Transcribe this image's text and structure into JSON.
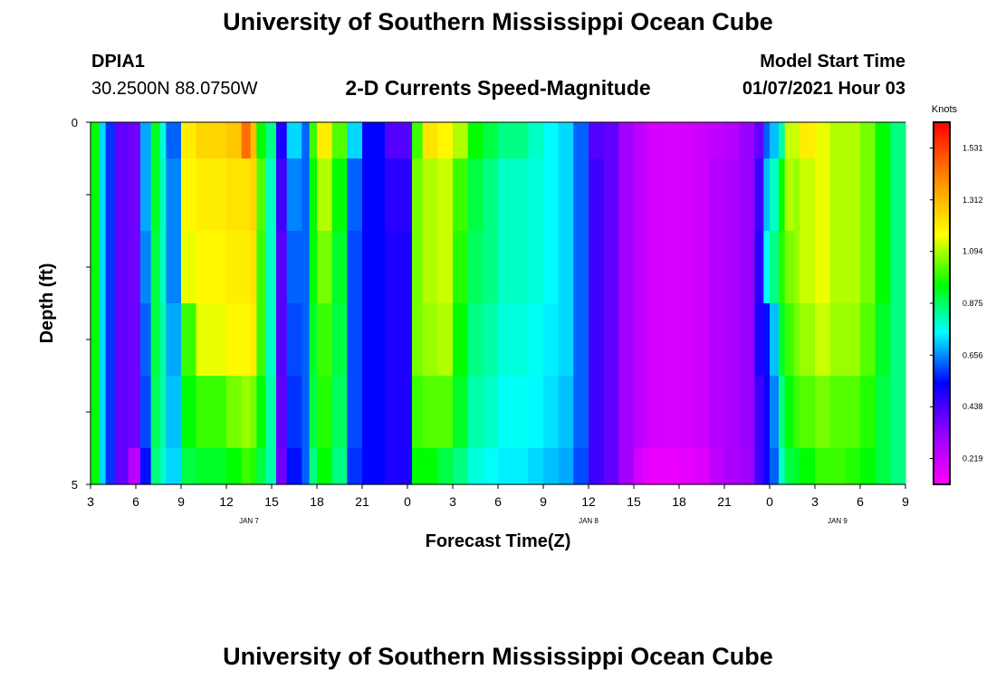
{
  "header": {
    "title": "University of Southern Mississippi Ocean Cube",
    "station_id": "DPIA1",
    "station_coords": "30.2500N 88.0750W",
    "model_start_label": "Model Start Time",
    "model_start_value": "01/07/2021 Hour 03"
  },
  "footer": {
    "title": "University of Southern Mississippi Ocean Cube"
  },
  "chart_data": {
    "type": "heatmap",
    "title": "2-D Currents Speed-Magnitude",
    "xlabel": "Forecast Time(Z)",
    "ylabel": "Depth (ft)",
    "colorbar_label": "Knots",
    "colorbar_ticks": [
      "1.531",
      "1.312",
      "1.094",
      "0.875",
      "0.656",
      "0.438",
      "0.219"
    ],
    "colorbar_range": [
      0.11,
      1.64
    ],
    "y_range": [
      0,
      5
    ],
    "y_tick_labels": [
      "0",
      "5"
    ],
    "x_range_hours": [
      3,
      57
    ],
    "x_tick_labels": [
      "3",
      "6",
      "9",
      "12",
      "15",
      "18",
      "21",
      "0",
      "3",
      "6",
      "9",
      "12",
      "15",
      "18",
      "21",
      "0",
      "3",
      "6",
      "9"
    ],
    "date_labels": [
      {
        "label": "JAN 7",
        "hour": 13.5
      },
      {
        "label": "JAN 8",
        "hour": 36
      },
      {
        "label": "JAN 9",
        "hour": 52.5
      }
    ],
    "column_start_hours": [
      3,
      3.6,
      4,
      4.6,
      5.5,
      6.3,
      7,
      7.6,
      8,
      9,
      10,
      12,
      13,
      13.6,
      14,
      14.6,
      15.3,
      16,
      17,
      17.5,
      18,
      19,
      20,
      21,
      22.5,
      24.3,
      25,
      26,
      27,
      28,
      29,
      30,
      32,
      33,
      34,
      35,
      36,
      37,
      38,
      39,
      39.6,
      40,
      41,
      42,
      43,
      44,
      45,
      46,
      47,
      47.6,
      48,
      48.6,
      49,
      49.6,
      50,
      51,
      52,
      53,
      54,
      55,
      56,
      57
    ],
    "depth_rows_ft": [
      0,
      0.5,
      1.5,
      2.5,
      3.5,
      4.5,
      5
    ],
    "speeds": [
      [
        0.95,
        0.72,
        0.58,
        0.4,
        0.38,
        0.68,
        0.92,
        0.78,
        0.62,
        1.2,
        1.25,
        1.28,
        1.45,
        1.3,
        0.95,
        0.85,
        0.5,
        0.72,
        0.62,
        1.0,
        1.2,
        1.02,
        0.72,
        0.54,
        0.42,
        1.0,
        1.22,
        1.18,
        1.1,
        0.95,
        0.9,
        0.85,
        0.8,
        0.75,
        0.72,
        0.62,
        0.42,
        0.4,
        0.3,
        0.25,
        0.22,
        0.2,
        0.19,
        0.2,
        0.22,
        0.24,
        0.26,
        0.32,
        0.4,
        0.62,
        0.7,
        0.82,
        1.12,
        1.12,
        1.2,
        1.15,
        1.1,
        1.1,
        1.05,
        0.95,
        0.85
      ],
      [
        0.95,
        0.72,
        0.58,
        0.4,
        0.38,
        0.68,
        0.92,
        0.8,
        0.65,
        1.18,
        1.2,
        1.22,
        1.22,
        1.25,
        1.02,
        0.8,
        0.45,
        0.65,
        0.62,
        0.95,
        1.1,
        0.95,
        0.62,
        0.54,
        0.48,
        1.05,
        1.1,
        1.12,
        1.0,
        0.9,
        0.85,
        0.8,
        0.78,
        0.75,
        0.72,
        0.62,
        0.45,
        0.4,
        0.3,
        0.25,
        0.22,
        0.2,
        0.19,
        0.2,
        0.22,
        0.26,
        0.28,
        0.32,
        0.45,
        0.7,
        0.8,
        0.95,
        1.1,
        1.08,
        1.12,
        1.15,
        1.1,
        1.1,
        1.05,
        0.95,
        0.85
      ],
      [
        0.95,
        0.72,
        0.58,
        0.4,
        0.38,
        0.65,
        0.9,
        0.8,
        0.65,
        1.15,
        1.18,
        1.2,
        1.2,
        1.22,
        1.0,
        0.8,
        0.42,
        0.62,
        0.62,
        0.95,
        1.05,
        0.92,
        0.6,
        0.54,
        0.5,
        1.05,
        1.1,
        1.12,
        0.98,
        0.88,
        0.85,
        0.8,
        0.78,
        0.75,
        0.72,
        0.62,
        0.45,
        0.4,
        0.3,
        0.25,
        0.22,
        0.2,
        0.19,
        0.2,
        0.22,
        0.26,
        0.28,
        0.32,
        0.48,
        0.75,
        0.85,
        0.98,
        1.05,
        1.08,
        1.12,
        1.15,
        1.1,
        1.1,
        1.05,
        0.95,
        0.85
      ],
      [
        0.95,
        0.72,
        0.58,
        0.4,
        0.38,
        0.62,
        0.9,
        0.82,
        0.68,
        1.0,
        1.15,
        1.18,
        1.18,
        1.2,
        1.0,
        0.8,
        0.42,
        0.6,
        0.62,
        0.92,
        1.0,
        0.9,
        0.6,
        0.54,
        0.5,
        1.05,
        1.08,
        1.1,
        0.95,
        0.85,
        0.82,
        0.78,
        0.76,
        0.74,
        0.72,
        0.62,
        0.45,
        0.4,
        0.3,
        0.25,
        0.22,
        0.2,
        0.19,
        0.2,
        0.22,
        0.26,
        0.28,
        0.32,
        0.5,
        0.55,
        0.7,
        0.92,
        1.0,
        1.05,
        1.08,
        1.12,
        1.08,
        1.08,
        1.02,
        0.92,
        0.85
      ],
      [
        0.95,
        0.72,
        0.58,
        0.4,
        0.38,
        0.6,
        0.88,
        0.82,
        0.7,
        0.95,
        1.0,
        1.05,
        1.08,
        1.05,
        0.95,
        0.82,
        0.4,
        0.58,
        0.62,
        0.9,
        0.98,
        0.88,
        0.6,
        0.54,
        0.5,
        1.0,
        1.02,
        1.02,
        0.92,
        0.82,
        0.8,
        0.76,
        0.75,
        0.73,
        0.7,
        0.62,
        0.45,
        0.4,
        0.3,
        0.25,
        0.22,
        0.2,
        0.19,
        0.2,
        0.22,
        0.26,
        0.28,
        0.32,
        0.45,
        0.52,
        0.65,
        0.85,
        0.95,
        1.0,
        1.02,
        1.05,
        1.02,
        1.02,
        0.98,
        0.9,
        0.85
      ],
      [
        0.95,
        0.72,
        0.58,
        0.4,
        0.25,
        0.55,
        0.85,
        0.8,
        0.72,
        0.9,
        0.92,
        0.95,
        1.0,
        0.98,
        0.9,
        0.82,
        0.38,
        0.55,
        0.62,
        0.85,
        0.95,
        0.85,
        0.58,
        0.54,
        0.5,
        0.95,
        0.95,
        0.9,
        0.85,
        0.78,
        0.76,
        0.74,
        0.72,
        0.7,
        0.68,
        0.6,
        0.45,
        0.4,
        0.3,
        0.2,
        0.17,
        0.15,
        0.15,
        0.16,
        0.18,
        0.24,
        0.28,
        0.3,
        0.45,
        0.52,
        0.62,
        0.8,
        0.9,
        0.92,
        0.95,
        1.0,
        1.0,
        0.98,
        0.95,
        0.9,
        0.85
      ]
    ]
  }
}
